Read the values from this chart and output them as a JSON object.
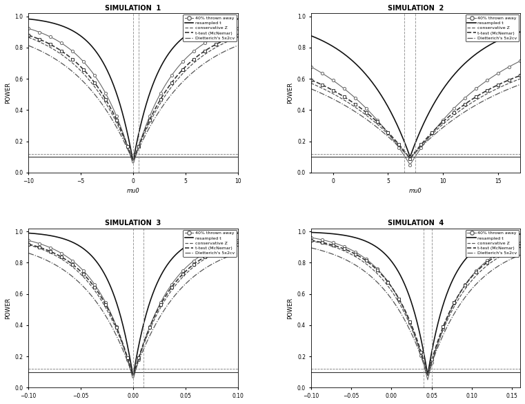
{
  "simulations": [
    {
      "title": "SIMULATION  1",
      "xlabel": "mu0",
      "xlim": [
        -10,
        10
      ],
      "ylim": [
        0,
        1.0
      ],
      "xticks": [
        -10,
        -5,
        0,
        5,
        10
      ],
      "vlines": [
        0.0,
        0.5
      ],
      "alpha_line": 0.1,
      "alpha_line2": 0.12,
      "x_min": 0.0
    },
    {
      "title": "SIMULATION  2",
      "xlabel": "mu0",
      "xlim": [
        -2,
        17
      ],
      "ylim": [
        0,
        1.0
      ],
      "xticks": [
        0,
        5,
        10,
        15
      ],
      "vlines": [
        6.5,
        7.5
      ],
      "alpha_line": 0.1,
      "alpha_line2": 0.12,
      "x_min": 7.0
    },
    {
      "title": "SIMULATION  3",
      "xlabel": "",
      "xlim": [
        -0.1,
        0.1
      ],
      "ylim": [
        0,
        1.0
      ],
      "xticks": [
        -0.1,
        -0.05,
        0.0,
        0.05,
        0.1
      ],
      "vlines": [
        0.0,
        0.01
      ],
      "alpha_line": 0.1,
      "alpha_line2": 0.12,
      "x_min": 0.0
    },
    {
      "title": "SIMULATION  4",
      "xlabel": "",
      "xlim": [
        -0.1,
        0.16
      ],
      "ylim": [
        0,
        1.0
      ],
      "xticks": [
        -0.1,
        -0.05,
        0.0,
        0.05,
        0.1,
        0.15
      ],
      "vlines": [
        0.04,
        0.05
      ],
      "alpha_line": 0.1,
      "alpha_line2": 0.12,
      "x_min": 0.045
    }
  ],
  "legend_labels": [
    "40% thrown away",
    "resampled t",
    "conservative Z",
    "t-test (McNemar)",
    "Dietterich's 5x2cv"
  ],
  "background": "#ffffff"
}
